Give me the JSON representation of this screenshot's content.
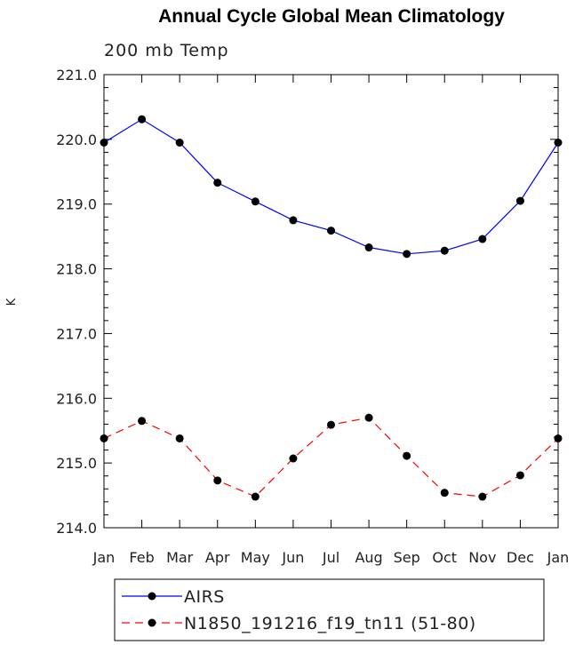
{
  "chart_data": {
    "type": "line",
    "title": "Annual Cycle Global Mean Climatology",
    "subtitle": "200 mb Temp",
    "ylabel": "K",
    "xlabel": "",
    "categories": [
      "Jan",
      "Feb",
      "Mar",
      "Apr",
      "May",
      "Jun",
      "Jul",
      "Aug",
      "Sep",
      "Oct",
      "Nov",
      "Dec",
      "Jan"
    ],
    "ylim": [
      214.0,
      221.0
    ],
    "yticks": [
      "214.0",
      "215.0",
      "216.0",
      "217.0",
      "218.0",
      "219.0",
      "220.0",
      "221.0"
    ],
    "grid": false,
    "legend_position": "bottom",
    "series": [
      {
        "name": "AIRS",
        "color": "#0000ff",
        "dash": "solid",
        "marker": "filled-circle",
        "values": [
          219.95,
          220.31,
          219.95,
          219.33,
          219.04,
          218.75,
          218.59,
          218.33,
          218.23,
          218.28,
          218.46,
          219.05,
          219.95
        ]
      },
      {
        "name": "N1850_191216_f19_tn11 (51-80)",
        "color": "#ff0000",
        "dash": "dashed",
        "marker": "filled-circle",
        "values": [
          215.38,
          215.65,
          215.38,
          214.73,
          214.48,
          215.07,
          215.59,
          215.7,
          215.11,
          214.54,
          214.48,
          214.81,
          215.38
        ]
      }
    ]
  }
}
